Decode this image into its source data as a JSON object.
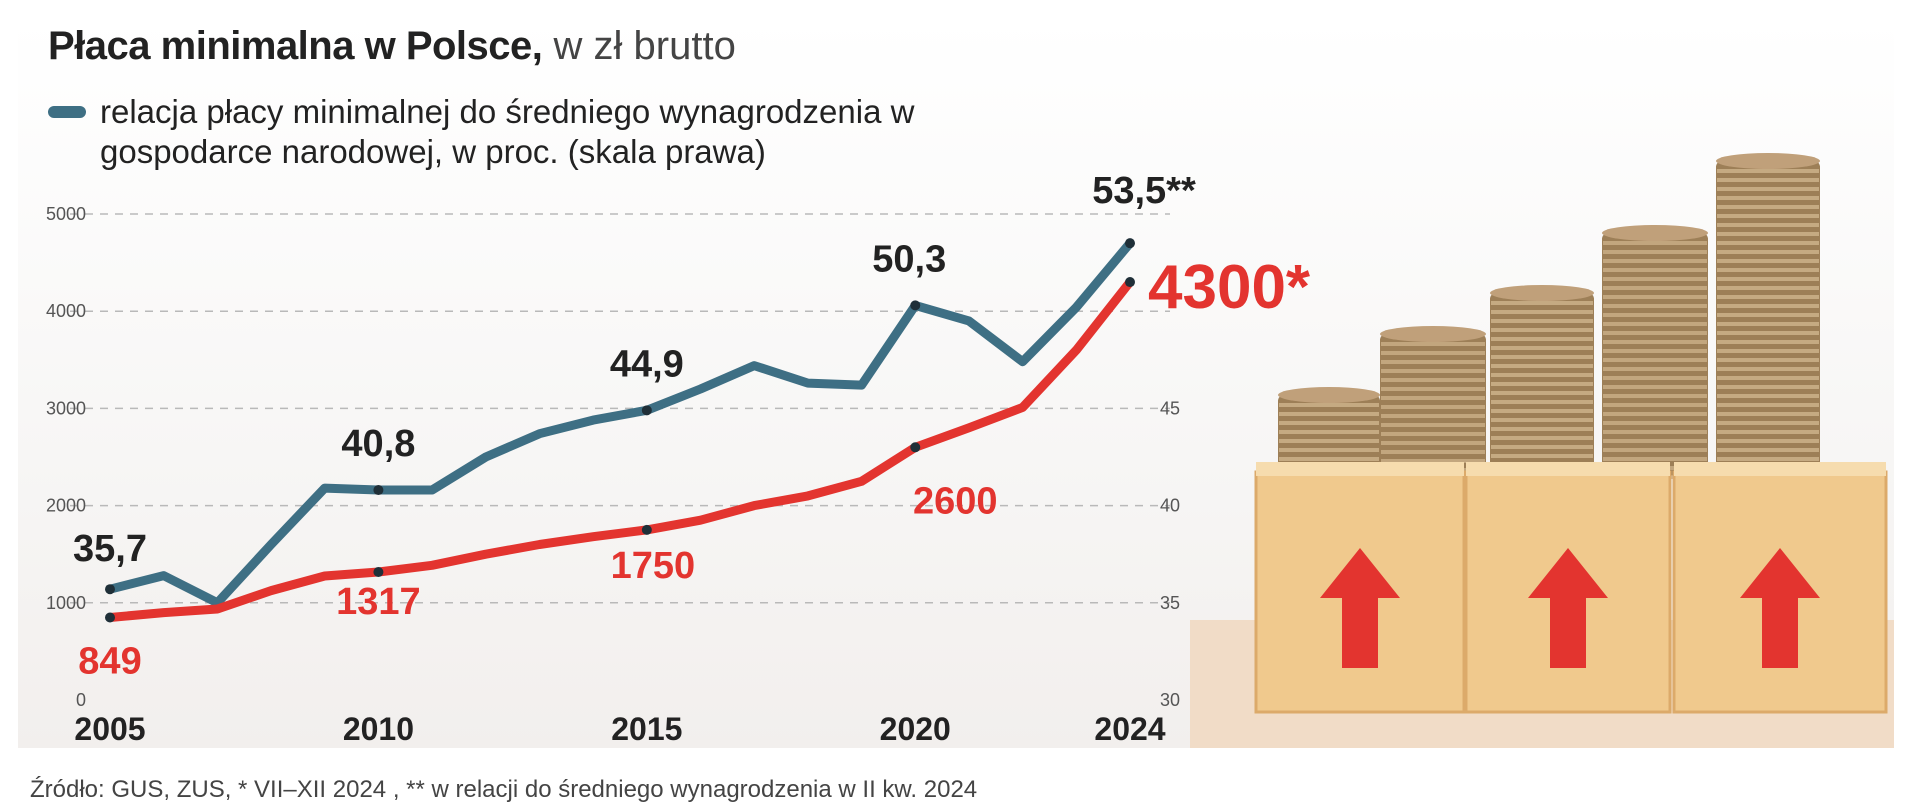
{
  "chart_data": {
    "type": "line",
    "title": "Płaca minimalna w Polsce,",
    "subtitle": "w zł brutto",
    "legend": {
      "label": "relacja płacy minimalnej do średniego wynagrodzenia w gospodarce narodowej, w proc. (skala prawa)",
      "color": "#3e6f84"
    },
    "x_ticks": [
      "2005",
      "2010",
      "2015",
      "2020",
      "2024"
    ],
    "y_left": {
      "ticks": [
        "0",
        "1000",
        "2000",
        "3000",
        "4000",
        "5000"
      ],
      "ylim": [
        0,
        5000
      ]
    },
    "y_right": {
      "ticks": [
        "30",
        "35",
        "40",
        "45"
      ],
      "ylim": [
        30,
        55
      ]
    },
    "grid": true,
    "series": [
      {
        "color": "#3e6f84",
        "axis": "right",
        "x": [
          2005,
          2006,
          2007,
          2008,
          2009,
          2010,
          2011,
          2012,
          2013,
          2014,
          2015,
          2016,
          2017,
          2018,
          2019,
          2020,
          2021,
          2022,
          2023,
          2024
        ],
        "values": [
          35.7,
          36.4,
          35.0,
          38.0,
          40.9,
          40.8,
          40.8,
          42.5,
          43.7,
          44.4,
          44.9,
          46.0,
          47.2,
          46.3,
          46.2,
          50.3,
          49.5,
          47.4,
          50.2,
          53.5
        ]
      },
      {
        "color": "#e3342f",
        "axis": "left",
        "x": [
          2005,
          2006,
          2007,
          2008,
          2009,
          2010,
          2011,
          2012,
          2013,
          2014,
          2015,
          2016,
          2017,
          2018,
          2019,
          2020,
          2021,
          2022,
          2023,
          2024
        ],
        "values": [
          849,
          899,
          936,
          1126,
          1276,
          1317,
          1386,
          1500,
          1600,
          1680,
          1750,
          1850,
          2000,
          2100,
          2250,
          2600,
          2800,
          3010,
          3600,
          4300
        ]
      }
    ],
    "annotations": {
      "blue": [
        {
          "x": 2005,
          "text": "35,7"
        },
        {
          "x": 2010,
          "text": "40,8"
        },
        {
          "x": 2015,
          "text": "44,9"
        },
        {
          "x": 2020,
          "text": "50,3"
        },
        {
          "x": 2024,
          "text": "53,5**"
        }
      ],
      "red": [
        {
          "x": 2005,
          "text": "849"
        },
        {
          "x": 2010,
          "text": "1317"
        },
        {
          "x": 2015,
          "text": "1750"
        },
        {
          "x": 2020,
          "text": "2600"
        },
        {
          "x": 2024,
          "text": "4300*"
        }
      ]
    }
  },
  "source": "Źródło: GUS, ZUS, * VII–XII 2024 , ** w relacji do średniego wynagrodzenia w II kw. 2024"
}
